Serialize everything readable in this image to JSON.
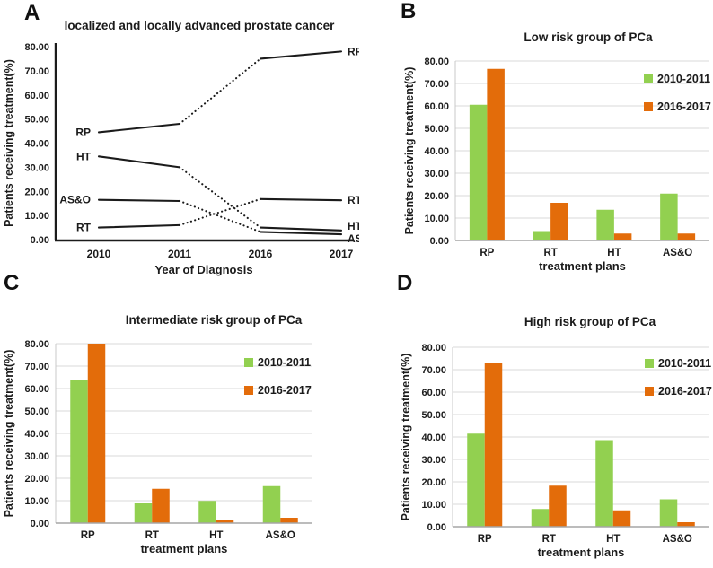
{
  "colors": {
    "series_2010_2011": "#92d050",
    "series_2016_2017": "#e36c0a",
    "line_black": "#1b1b1b",
    "grid_gray": "#d9d9d9",
    "axis_gray": "#a6a6a6",
    "text_dark": "#1b1b1b",
    "background": "#ffffff"
  },
  "chart_data": [
    {
      "panel": "A",
      "type": "line",
      "title": "localized and locally advanced prostate cancer",
      "xlabel": "Year of Diagnosis",
      "ylabel": "Patients receiving treatment(%)",
      "categories": [
        "2010",
        "2011",
        "2016",
        "2017"
      ],
      "ylim": [
        0,
        80
      ],
      "ytick_step": 10,
      "ytick_format": "two-decimals",
      "grid": false,
      "legend_position": "none",
      "segment_styles": [
        "solid",
        "dotted",
        "solid"
      ],
      "series": [
        {
          "name": "RP",
          "values": [
            44.5,
            48,
            75,
            78
          ]
        },
        {
          "name": "HT",
          "values": [
            34.5,
            30,
            5,
            3.8
          ]
        },
        {
          "name": "AS&O",
          "values": [
            16.5,
            16,
            3.2,
            2.2
          ]
        },
        {
          "name": "RT",
          "values": [
            5,
            6,
            16.8,
            16.3
          ]
        }
      ]
    },
    {
      "panel": "B",
      "type": "bar",
      "title": "Low risk group of PCa",
      "xlabel": "treatment plans",
      "ylabel": "Patients receiving treatment(%)",
      "categories": [
        "RP",
        "RT",
        "HT",
        "AS&O"
      ],
      "ylim": [
        0,
        80
      ],
      "ytick_step": 10,
      "ytick_format": "two-decimals",
      "grid": true,
      "legend_position": "upper right",
      "series": [
        {
          "name": "2010-2011",
          "color": "#92d050",
          "values": [
            60.5,
            4.2,
            13.7,
            20.9
          ]
        },
        {
          "name": "2016-2017",
          "color": "#e36c0a",
          "values": [
            76.5,
            16.8,
            3.1,
            3.1
          ]
        }
      ]
    },
    {
      "panel": "C",
      "type": "bar",
      "title": "Intermediate risk group of  PCa",
      "xlabel": "treatment plans",
      "ylabel": "Patients receiving treatment(%)",
      "categories": [
        "RP",
        "RT",
        "HT",
        "AS&O"
      ],
      "ylim": [
        0,
        80
      ],
      "ytick_step": 10,
      "ytick_format": "two-decimals",
      "grid": true,
      "legend_position": "upper right",
      "series": [
        {
          "name": "2010-2011",
          "color": "#92d050",
          "values": [
            63.9,
            8.8,
            9.9,
            16.5
          ]
        },
        {
          "name": "2016-2017",
          "color": "#e36c0a",
          "values": [
            80,
            15.3,
            1.5,
            2.4
          ]
        }
      ]
    },
    {
      "panel": "D",
      "type": "bar",
      "title": "High risk group of PCa",
      "xlabel": "treatment plans",
      "ylabel": "Patients receiving treatment(%)",
      "categories": [
        "RP",
        "RT",
        "HT",
        "AS&O"
      ],
      "ylim": [
        0,
        80
      ],
      "ytick_step": 10,
      "ytick_format": "two-decimals",
      "grid": true,
      "legend_position": "upper right",
      "series": [
        {
          "name": "2010-2011",
          "color": "#92d050",
          "values": [
            41.5,
            7.9,
            38.6,
            12.2
          ]
        },
        {
          "name": "2016-2017",
          "color": "#e36c0a",
          "values": [
            73,
            18.3,
            7.3,
            2.0
          ]
        }
      ]
    }
  ]
}
